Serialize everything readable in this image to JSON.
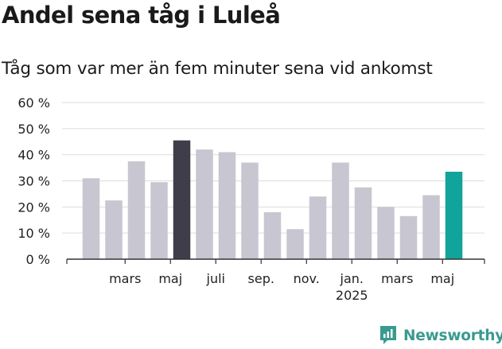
{
  "chart_data": {
    "type": "bar",
    "title": "Andel sena tåg i Luleå",
    "subtitle": "Tåg som var mer än fem minuter sena vid ankomst",
    "xlabel": "",
    "ylabel": "",
    "ylim": [
      0,
      60
    ],
    "grid": true,
    "y_ticks": [
      "0 %",
      "10 %",
      "20 %",
      "30 %",
      "40 %",
      "50 %",
      "60 %"
    ],
    "y_tick_values": [
      0,
      10,
      20,
      30,
      40,
      50,
      60
    ],
    "x_tick_labels": [
      {
        "index": 2,
        "label": "mars"
      },
      {
        "index": 4,
        "label": "maj"
      },
      {
        "index": 6,
        "label": "juli"
      },
      {
        "index": 8,
        "label": "sep."
      },
      {
        "index": 10,
        "label": "nov."
      },
      {
        "index": 12,
        "label": "jan.",
        "sublabel": "2025"
      },
      {
        "index": 14,
        "label": "mars"
      },
      {
        "index": 16,
        "label": "maj"
      }
    ],
    "values": [
      31,
      22.5,
      37.5,
      29.5,
      45.5,
      42,
      41,
      37,
      18,
      11.5,
      24,
      37,
      27.5,
      20,
      16.5,
      24.5,
      33.5
    ],
    "colors": {
      "default": "#c8c6d0",
      "highlight_max": "#3f3d4a",
      "latest": "#10a49a",
      "grid": "#dddddd",
      "axis": "#333333"
    },
    "highlight_index": 4,
    "latest_index": 16
  },
  "brand": {
    "name": "Newsworthy",
    "icon": "newsworthy-logo-icon",
    "color": "#3a9a90"
  }
}
